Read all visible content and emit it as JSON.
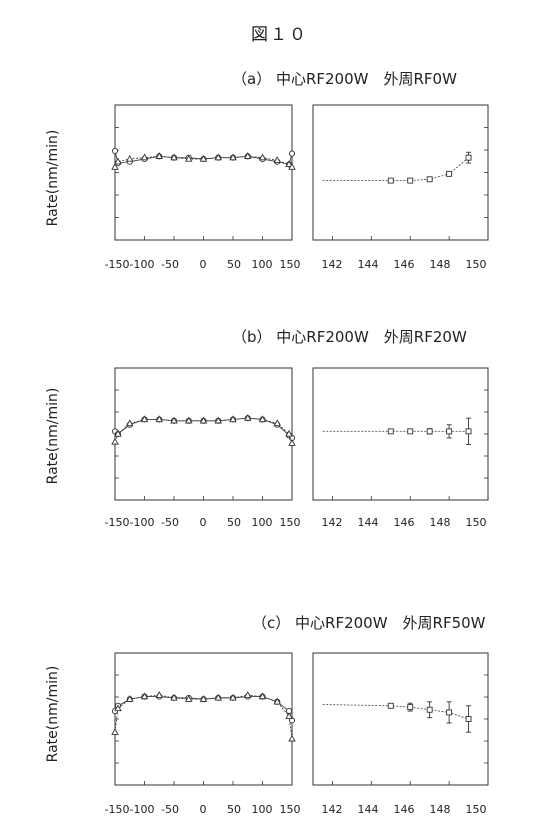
{
  "figure_title": "図１０",
  "chart_data": [
    {
      "type": "line",
      "title": "（a） 中心RF200W　外周RF0W",
      "ylabel": "Rate(nm/min)",
      "left": {
        "x_ticks": [
          "-150",
          "-100",
          "-50",
          "0",
          "50",
          "100",
          "150"
        ],
        "xlim": [
          -150,
          150
        ],
        "ylim": [
          0,
          1
        ],
        "series": [
          {
            "marker": "circle",
            "x": [
              -150,
              -145,
              -125,
              -100,
              -75,
              -50,
              -25,
              0,
              25,
              50,
              75,
              100,
              125,
              145,
              150
            ],
            "y": [
              0.66,
              0.57,
              0.58,
              0.6,
              0.62,
              0.61,
              0.61,
              0.6,
              0.61,
              0.61,
              0.62,
              0.6,
              0.58,
              0.56,
              0.64
            ]
          },
          {
            "marker": "triangle",
            "x": [
              -150,
              -145,
              -125,
              -100,
              -75,
              -50,
              -25,
              0,
              25,
              50,
              75,
              100,
              125,
              145,
              150
            ],
            "y": [
              0.54,
              0.58,
              0.6,
              0.61,
              0.62,
              0.61,
              0.6,
              0.6,
              0.61,
              0.61,
              0.62,
              0.61,
              0.59,
              0.56,
              0.54
            ]
          }
        ]
      },
      "right": {
        "x_ticks": [
          "142",
          "144",
          "146",
          "148",
          "150"
        ],
        "xlim": [
          141,
          150
        ],
        "ylim": [
          0,
          1
        ],
        "series": [
          {
            "marker": "square",
            "x": [
              141.5,
              145,
              146,
              147,
              148,
              149
            ],
            "y": [
              0.44,
              0.44,
              0.44,
              0.45,
              0.49,
              0.61
            ],
            "yerr": [
              0,
              0,
              0,
              0,
              0.01,
              0.04
            ]
          }
        ]
      }
    },
    {
      "type": "line",
      "title": "（b） 中心RF200W　外周RF20W",
      "ylabel": "Rate(nm/min)",
      "left": {
        "x_ticks": [
          "-150",
          "-100",
          "-50",
          "0",
          "50",
          "100",
          "150"
        ],
        "xlim": [
          -150,
          150
        ],
        "ylim": [
          0,
          1
        ],
        "series": [
          {
            "marker": "circle",
            "x": [
              -150,
              -145,
              -125,
              -100,
              -75,
              -50,
              -25,
              0,
              25,
              50,
              75,
              100,
              125,
              145,
              150
            ],
            "y": [
              0.52,
              0.5,
              0.57,
              0.61,
              0.61,
              0.6,
              0.6,
              0.6,
              0.6,
              0.61,
              0.62,
              0.61,
              0.57,
              0.49,
              0.47
            ]
          },
          {
            "marker": "triangle",
            "x": [
              -150,
              -145,
              -125,
              -100,
              -75,
              -50,
              -25,
              0,
              25,
              50,
              75,
              100,
              125,
              145,
              150
            ],
            "y": [
              0.44,
              0.5,
              0.58,
              0.61,
              0.61,
              0.6,
              0.6,
              0.6,
              0.6,
              0.61,
              0.62,
              0.61,
              0.58,
              0.5,
              0.43
            ]
          }
        ]
      },
      "right": {
        "x_ticks": [
          "142",
          "144",
          "146",
          "148",
          "150"
        ],
        "xlim": [
          141,
          150
        ],
        "ylim": [
          0,
          1
        ],
        "series": [
          {
            "marker": "square",
            "x": [
              141.5,
              145,
              146,
              147,
              148,
              149
            ],
            "y": [
              0.52,
              0.52,
              0.52,
              0.52,
              0.52,
              0.52
            ],
            "yerr": [
              0,
              0,
              0,
              0.02,
              0.05,
              0.1
            ]
          }
        ]
      }
    },
    {
      "type": "line",
      "title": "（c） 中心RF200W　外周RF50W",
      "ylabel": "Rate(nm/min)",
      "left": {
        "x_ticks": [
          "-150",
          "-100",
          "-50",
          "0",
          "50",
          "100",
          "150"
        ],
        "xlim": [
          -150,
          150
        ],
        "ylim": [
          0,
          1
        ],
        "series": [
          {
            "marker": "circle",
            "x": [
              -150,
              -145,
              -125,
              -100,
              -75,
              -50,
              -25,
              0,
              25,
              50,
              75,
              100,
              125,
              145,
              150
            ],
            "y": [
              0.56,
              0.6,
              0.65,
              0.67,
              0.67,
              0.66,
              0.66,
              0.65,
              0.66,
              0.66,
              0.67,
              0.67,
              0.63,
              0.56,
              0.49
            ]
          },
          {
            "marker": "triangle",
            "x": [
              -150,
              -145,
              -125,
              -100,
              -75,
              -50,
              -25,
              0,
              25,
              50,
              75,
              100,
              125,
              145,
              150
            ],
            "y": [
              0.4,
              0.58,
              0.65,
              0.67,
              0.68,
              0.66,
              0.65,
              0.65,
              0.66,
              0.66,
              0.68,
              0.67,
              0.63,
              0.52,
              0.35
            ]
          }
        ]
      },
      "right": {
        "x_ticks": [
          "142",
          "144",
          "146",
          "148",
          "150"
        ],
        "xlim": [
          141,
          150
        ],
        "ylim": [
          0,
          1
        ],
        "series": [
          {
            "marker": "square",
            "x": [
              141.5,
              145,
              146,
              147,
              148,
              149
            ],
            "y": [
              0.61,
              0.6,
              0.59,
              0.57,
              0.55,
              0.5
            ],
            "yerr": [
              0,
              0.01,
              0.03,
              0.06,
              0.08,
              0.1
            ]
          }
        ]
      }
    }
  ]
}
